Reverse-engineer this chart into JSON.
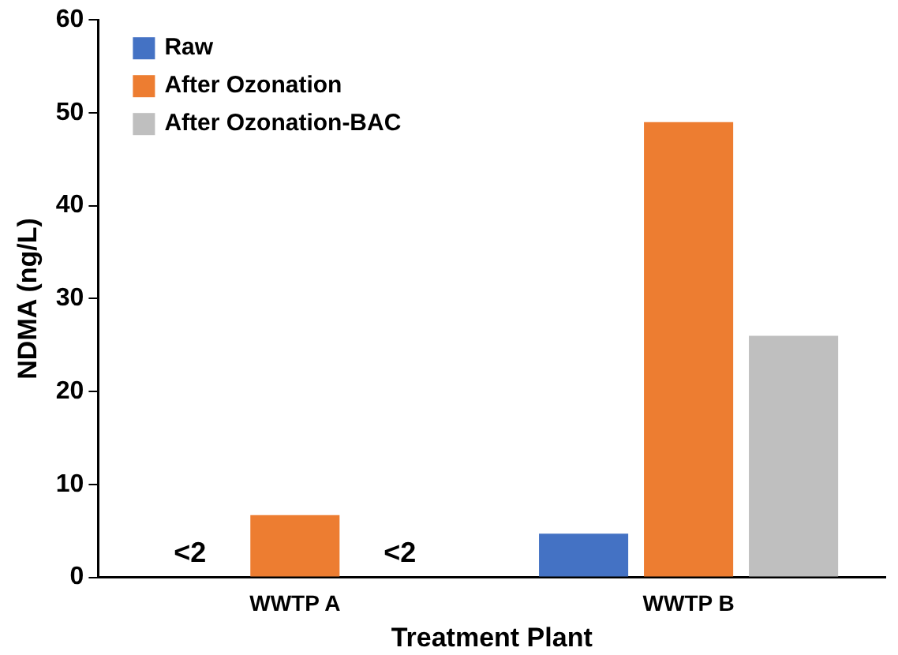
{
  "chart_data": {
    "type": "bar",
    "xlabel": "Treatment Plant",
    "ylabel": "NDMA (ng/L)",
    "categories": [
      "WWTP A",
      "WWTP B"
    ],
    "series": [
      {
        "name": "Raw",
        "color": "#4472c4",
        "values": [
          null,
          4.7
        ],
        "value_labels": [
          "<2",
          null
        ]
      },
      {
        "name": "After Ozonation",
        "color": "#ed7d31",
        "values": [
          6.7,
          49
        ]
      },
      {
        "name": "After Ozonation-BAC",
        "color": "#bfbfbf",
        "values": [
          null,
          26
        ],
        "value_labels": [
          "<2",
          null
        ]
      }
    ],
    "ylim": [
      0,
      60
    ],
    "yticks": [
      0,
      10,
      20,
      30,
      40,
      50,
      60
    ],
    "grid": false,
    "legend": "top left"
  }
}
